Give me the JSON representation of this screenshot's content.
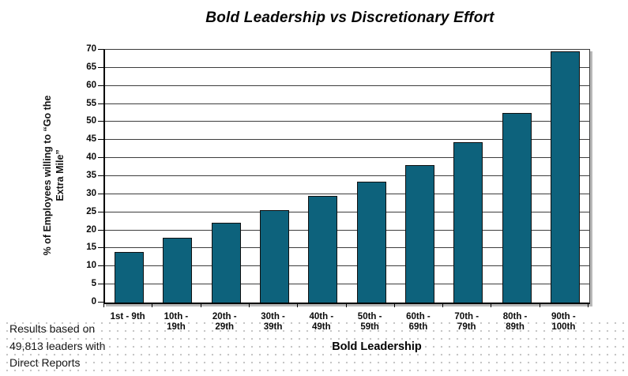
{
  "title": "Bold Leadership vs Discretionary Effort",
  "y_axis": {
    "title_line1": "% of Employees willing to “Go the",
    "title_line2": "Extra Mile”"
  },
  "x_axis": {
    "title": "Bold Leadership"
  },
  "note": {
    "line1": "Results based on",
    "line2": "49,813 leaders with",
    "line3": "Direct Reports"
  },
  "colors": {
    "bar_fill": "#0d627c",
    "bar_border": "#101010",
    "gridline": "#3d3d3d",
    "shadow": "#b9b9b9",
    "dot": "#c6c6c6"
  },
  "chart_data": {
    "type": "bar",
    "title": "Bold Leadership vs Discretionary Effort",
    "xlabel": "Bold Leadership",
    "ylabel": "% of Employees willing to “Go the Extra Mile”",
    "categories": [
      "1st - 9th",
      "10th - 19th",
      "20th - 29th",
      "30th - 39th",
      "40th - 49th",
      "50th - 59th",
      "60th - 69th",
      "70th - 79th",
      "80th - 89th",
      "90th - 100th"
    ],
    "category_labels": [
      [
        "1st - 9th",
        ""
      ],
      [
        "10th -",
        "19th"
      ],
      [
        "20th -",
        "29th"
      ],
      [
        "30th -",
        "39th"
      ],
      [
        "40th -",
        "49th"
      ],
      [
        "50th -",
        "59th"
      ],
      [
        "60th -",
        "69th"
      ],
      [
        "70th -",
        "79th"
      ],
      [
        "80th -",
        "89th"
      ],
      [
        "90th -",
        "100th"
      ]
    ],
    "values": [
      14,
      18,
      22,
      25.5,
      29.5,
      33.5,
      38,
      44.5,
      52.5,
      69.5
    ],
    "ylim": [
      0,
      70
    ],
    "ytick_step": 5,
    "grid": true,
    "legend": false
  }
}
